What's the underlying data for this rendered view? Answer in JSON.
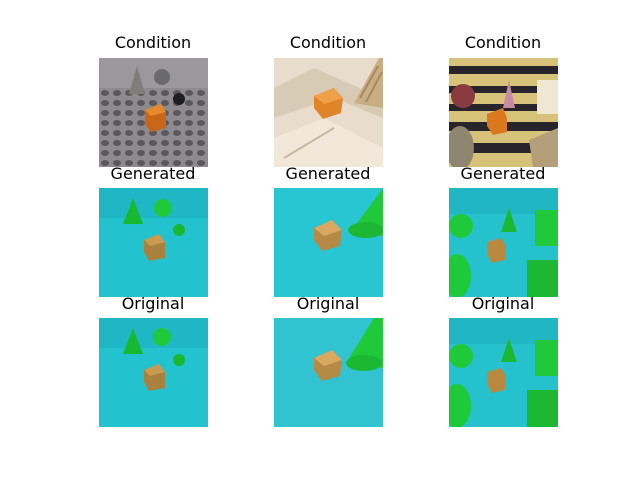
{
  "figure": {
    "rows": [
      {
        "row_id": "condition",
        "titles": [
          "Condition",
          "Condition",
          "Condition"
        ]
      },
      {
        "row_id": "generated",
        "titles": [
          "Generated",
          "Generated",
          "Generated"
        ]
      },
      {
        "row_id": "original",
        "titles": [
          "Original",
          "Original",
          "Original"
        ]
      }
    ]
  },
  "colors": {
    "background": "#ffffff",
    "cyan_scene": "#22c3cf",
    "green_object": "#1fc93a",
    "orange_cube": "#d9882a"
  }
}
